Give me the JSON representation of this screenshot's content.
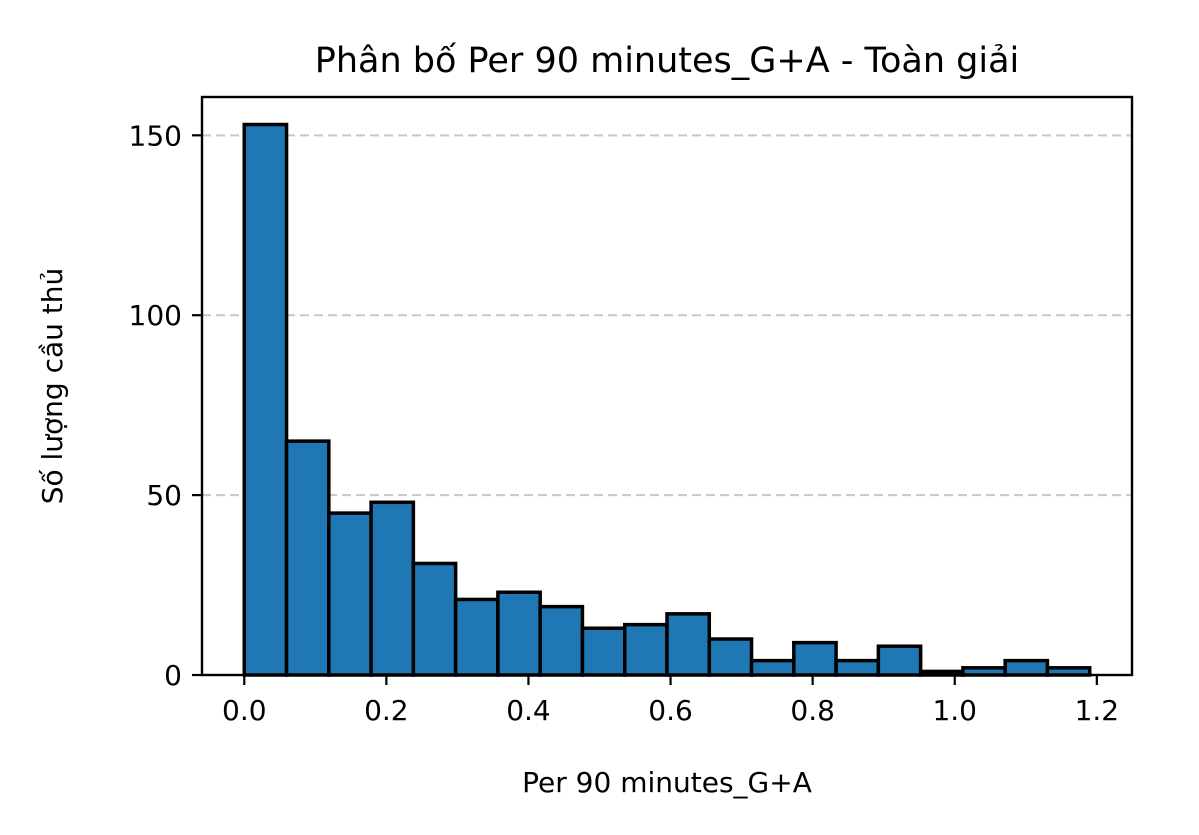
{
  "chart_data": {
    "type": "bar",
    "subtype": "histogram",
    "title": "Phân bố Per 90 minutes_G+A - Toàn giải",
    "xlabel": "Per 90 minutes_G+A",
    "ylabel": "Số lượng cầu thủ",
    "xlim": [
      -0.0595,
      1.2495
    ],
    "ylim": [
      0,
      160.65
    ],
    "xticks": [
      {
        "value": 0.0,
        "label": "0.0"
      },
      {
        "value": 0.2,
        "label": "0.2"
      },
      {
        "value": 0.4,
        "label": "0.4"
      },
      {
        "value": 0.6,
        "label": "0.6"
      },
      {
        "value": 0.8,
        "label": "0.8"
      },
      {
        "value": 1.0,
        "label": "1.0"
      },
      {
        "value": 1.2,
        "label": "1.2"
      }
    ],
    "yticks": [
      {
        "value": 0,
        "label": "0"
      },
      {
        "value": 50,
        "label": "50"
      },
      {
        "value": 100,
        "label": "100"
      },
      {
        "value": 150,
        "label": "150"
      }
    ],
    "grid": {
      "y": true,
      "x": false,
      "style": "dashed"
    },
    "bin_edges": [
      0.0,
      0.0595,
      0.119,
      0.1785,
      0.238,
      0.2975,
      0.357,
      0.4165,
      0.476,
      0.5355,
      0.595,
      0.6545,
      0.714,
      0.7735,
      0.833,
      0.8925,
      0.952,
      1.0115,
      1.071,
      1.1305,
      1.19
    ],
    "values": [
      153,
      65,
      45,
      48,
      31,
      21,
      23,
      19,
      13,
      14,
      17,
      10,
      4,
      9,
      4,
      8,
      1,
      2,
      4,
      2
    ],
    "colors": {
      "bar_fill": "#1f77b4",
      "bar_edge": "#000000",
      "grid": "#c8c8c8",
      "axes": "#000000"
    }
  }
}
